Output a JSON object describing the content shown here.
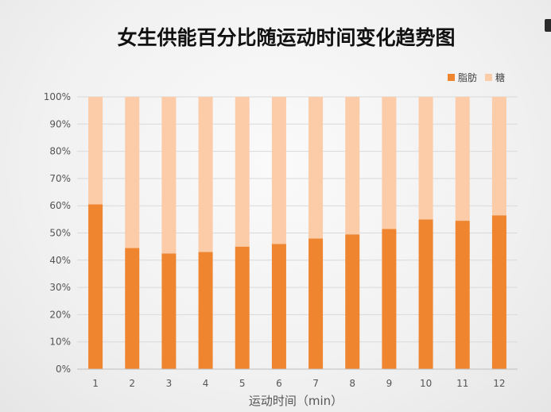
{
  "chart_data": {
    "type": "bar",
    "stacked": true,
    "title": "女生供能百分比随运动时间变化趋势图",
    "xlabel": "运动时间（min）",
    "ylabel": "",
    "categories": [
      "1",
      "2",
      "3",
      "4",
      "5",
      "6",
      "7",
      "8",
      "9",
      "10",
      "11",
      "12"
    ],
    "series": [
      {
        "name": "脂肪",
        "color": "#F08530",
        "values": [
          60.5,
          44.5,
          42.5,
          43,
          45,
          46,
          48,
          49.5,
          51.5,
          55,
          54.5,
          56.5
        ]
      },
      {
        "name": "糖",
        "color": "#FCCBA8",
        "values": [
          39.5,
          55.5,
          57.5,
          57,
          55,
          54,
          52,
          50.5,
          48.5,
          45,
          45.5,
          43.5
        ]
      }
    ],
    "ylim": [
      0,
      100
    ],
    "yticks": [
      "0%",
      "10%",
      "20%",
      "30%",
      "40%",
      "50%",
      "60%",
      "70%",
      "80%",
      "90%",
      "100%"
    ],
    "grid": true,
    "legend_position": "top-right"
  }
}
